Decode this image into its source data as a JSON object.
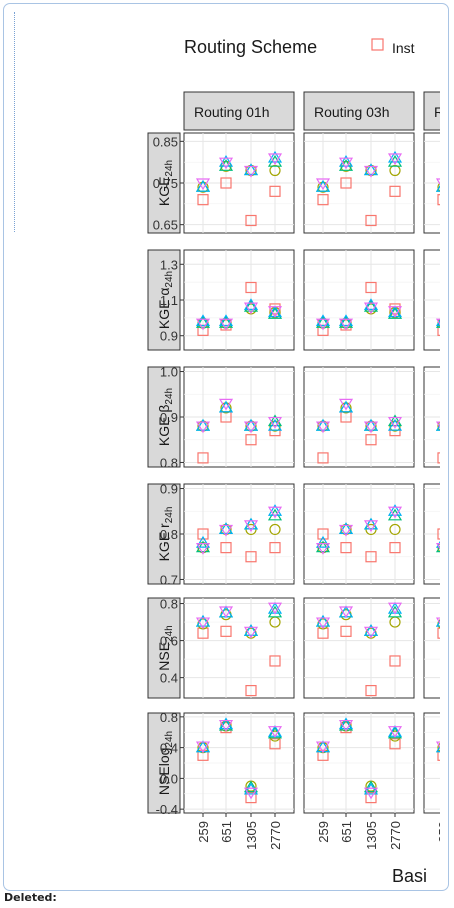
{
  "legend": {
    "title": "Routing Scheme",
    "first_entry": "Inst",
    "first_color": "#f8766d"
  },
  "facets": {
    "columns": [
      "Routing 01h",
      "Routing 03h",
      "R"
    ]
  },
  "rows": [
    {
      "key": "kge",
      "main": "KGE",
      "sub": "24h"
    },
    {
      "key": "alpha",
      "main": "KGE α",
      "sub": "24h"
    },
    {
      "key": "beta",
      "main": "KGE β",
      "sub": "24h"
    },
    {
      "key": "r",
      "main": "KGE r",
      "sub": "24h"
    },
    {
      "key": "nse",
      "main": "NSE",
      "sub": "24h"
    },
    {
      "key": "nselog",
      "main": "NSElog",
      "sub": "24h"
    }
  ],
  "x_axis": {
    "label": "Basi",
    "ticks": [
      "259",
      "651",
      "1305",
      "2770"
    ]
  },
  "footer": {
    "deleted": "Deleted:"
  },
  "colors": {
    "inst": "#f8766d",
    "olive": "#a3a500",
    "green": "#00bf7d",
    "blue": "#00b0f6",
    "magenta": "#e76bf3"
  },
  "chart_data": {
    "type": "scatter",
    "categories": [
      "259",
      "651",
      "1305",
      "2770"
    ],
    "panels": [
      {
        "row": "kge",
        "ylim": [
          0.63,
          0.87
        ],
        "yticks": [
          "0.85",
          "0.75",
          "0.65"
        ],
        "ytick_values": [
          0.85,
          0.75,
          0.65
        ],
        "inst": [
          0.71,
          0.75,
          0.66,
          0.73
        ],
        "others": [
          [
            0.74,
            0.79,
            0.78,
            0.78
          ],
          [
            0.74,
            0.79,
            0.78,
            0.8
          ],
          [
            0.74,
            0.8,
            0.78,
            0.81
          ],
          [
            0.75,
            0.8,
            0.78,
            0.81
          ]
        ]
      },
      {
        "row": "alpha",
        "ylim": [
          0.82,
          1.38
        ],
        "yticks": [
          "1.3",
          "1.1",
          "0.9"
        ],
        "ytick_values": [
          1.3,
          1.1,
          0.9
        ],
        "inst": [
          0.93,
          0.96,
          1.17,
          1.05
        ],
        "others": [
          [
            0.97,
            0.97,
            1.05,
            1.03
          ],
          [
            0.97,
            0.97,
            1.06,
            1.02
          ],
          [
            0.98,
            0.98,
            1.07,
            1.03
          ],
          [
            0.97,
            0.97,
            1.06,
            1.04
          ]
        ]
      },
      {
        "row": "beta",
        "ylim": [
          0.79,
          1.01
        ],
        "yticks": [
          "1.0",
          "0.9",
          "0.8"
        ],
        "ytick_values": [
          1.0,
          0.9,
          0.8
        ],
        "inst": [
          0.81,
          0.9,
          0.85,
          0.87
        ],
        "others": [
          [
            0.88,
            0.92,
            0.88,
            0.88
          ],
          [
            0.88,
            0.92,
            0.88,
            0.89
          ],
          [
            0.88,
            0.92,
            0.88,
            0.88
          ],
          [
            0.88,
            0.93,
            0.88,
            0.89
          ]
        ]
      },
      {
        "row": "r",
        "ylim": [
          0.69,
          0.91
        ],
        "yticks": [
          "0.9",
          "0.8",
          "0.7"
        ],
        "ytick_values": [
          0.9,
          0.8,
          0.7
        ],
        "inst": [
          0.8,
          0.77,
          0.75,
          0.77
        ],
        "others": [
          [
            0.77,
            0.81,
            0.81,
            0.81
          ],
          [
            0.77,
            0.81,
            0.82,
            0.84
          ],
          [
            0.78,
            0.81,
            0.82,
            0.85
          ],
          [
            0.77,
            0.81,
            0.82,
            0.85
          ]
        ]
      },
      {
        "row": "nse",
        "ylim": [
          0.29,
          0.83
        ],
        "yticks": [
          "0.8",
          "0.6",
          "0.4"
        ],
        "ytick_values": [
          0.8,
          0.6,
          0.4
        ],
        "inst": [
          0.64,
          0.65,
          0.33,
          0.49
        ],
        "others": [
          [
            0.69,
            0.74,
            0.64,
            0.7
          ],
          [
            0.7,
            0.75,
            0.65,
            0.75
          ],
          [
            0.7,
            0.75,
            0.65,
            0.77
          ],
          [
            0.7,
            0.76,
            0.65,
            0.78
          ]
        ]
      },
      {
        "row": "nselog",
        "ylim": [
          -0.45,
          0.85
        ],
        "yticks": [
          "0.8",
          "0.4",
          "0.0",
          "-0.4"
        ],
        "ytick_values": [
          0.8,
          0.4,
          0.0,
          -0.4
        ],
        "inst": [
          0.3,
          0.66,
          -0.25,
          0.45
        ],
        "others": [
          [
            0.4,
            0.68,
            -0.1,
            0.55
          ],
          [
            0.4,
            0.68,
            -0.12,
            0.58
          ],
          [
            0.4,
            0.7,
            -0.15,
            0.6
          ],
          [
            0.42,
            0.7,
            -0.18,
            0.62
          ]
        ]
      }
    ]
  }
}
